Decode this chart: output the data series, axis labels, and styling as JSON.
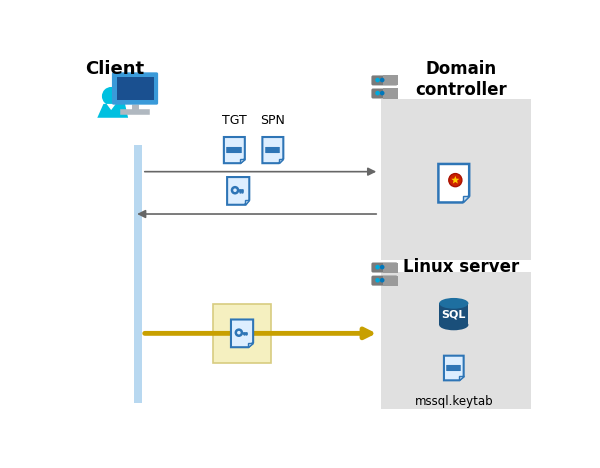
{
  "bg_color": "#ffffff",
  "panel_color": "#e0e0e0",
  "client_label": "Client",
  "domain_label": "Domain\ncontroller",
  "linux_label": "Linux server",
  "tgt_label": "TGT",
  "spn_label": "SPN",
  "mssql_label": "mssql.keytab",
  "client_bar_color": "#b8d8f0",
  "arrow_color_gray": "#666666",
  "arrow_color_gold": "#c8a000",
  "doc_color_blue": "#2e75b6",
  "doc_body_color": "#ddeeff",
  "highlight_color": "#f5f0c0",
  "highlight_border": "#d8cc80",
  "server_body": "#7a7a7a",
  "server_top": "#9a9a9a",
  "server_led1": "#00aadd",
  "server_led2": "#0077bb",
  "cert_border": "#2e75b6",
  "cert_body": "#ffffff",
  "cert_fold": "#c8ddf0",
  "cert_ribbon_red": "#cc2200",
  "cert_ribbon_gold": "#cc8800",
  "cert_star": "#ffcc00",
  "sql_body": "#1a4f7a",
  "sql_top": "#1e6fa0",
  "sql_text": "#ffffff",
  "figw": 6.0,
  "figh": 4.68,
  "dpi": 100
}
